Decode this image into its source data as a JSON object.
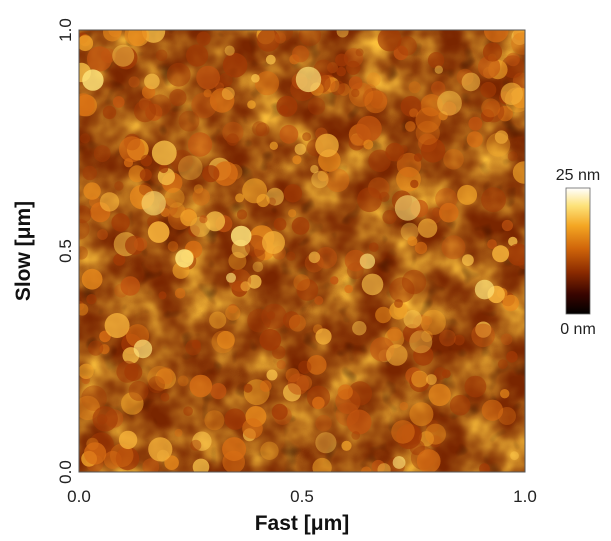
{
  "chart_data": {
    "type": "heatmap",
    "title": "",
    "xlabel": "Fast [μm]",
    "ylabel": "Slow [μm]",
    "xlim": [
      0.0,
      1.0
    ],
    "ylim": [
      0.0,
      1.0
    ],
    "x_ticks": [
      "0.0",
      "0.5",
      "1.0"
    ],
    "y_ticks": [
      "0.0",
      "0.5",
      "1.0"
    ],
    "x_tick_values": [
      0.0,
      0.5,
      1.0
    ],
    "y_tick_values": [
      0.0,
      0.5,
      1.0
    ],
    "colorbar": {
      "min": 0,
      "max": 25,
      "unit": "nm",
      "max_label": "25 nm",
      "min_label": "0 nm",
      "colormap": [
        "#000000",
        "#3a0500",
        "#8a2a00",
        "#d0650a",
        "#f4a623",
        "#fde27a",
        "#ffffff"
      ]
    },
    "grid": false,
    "legend": "none",
    "surface_seed": 7
  }
}
